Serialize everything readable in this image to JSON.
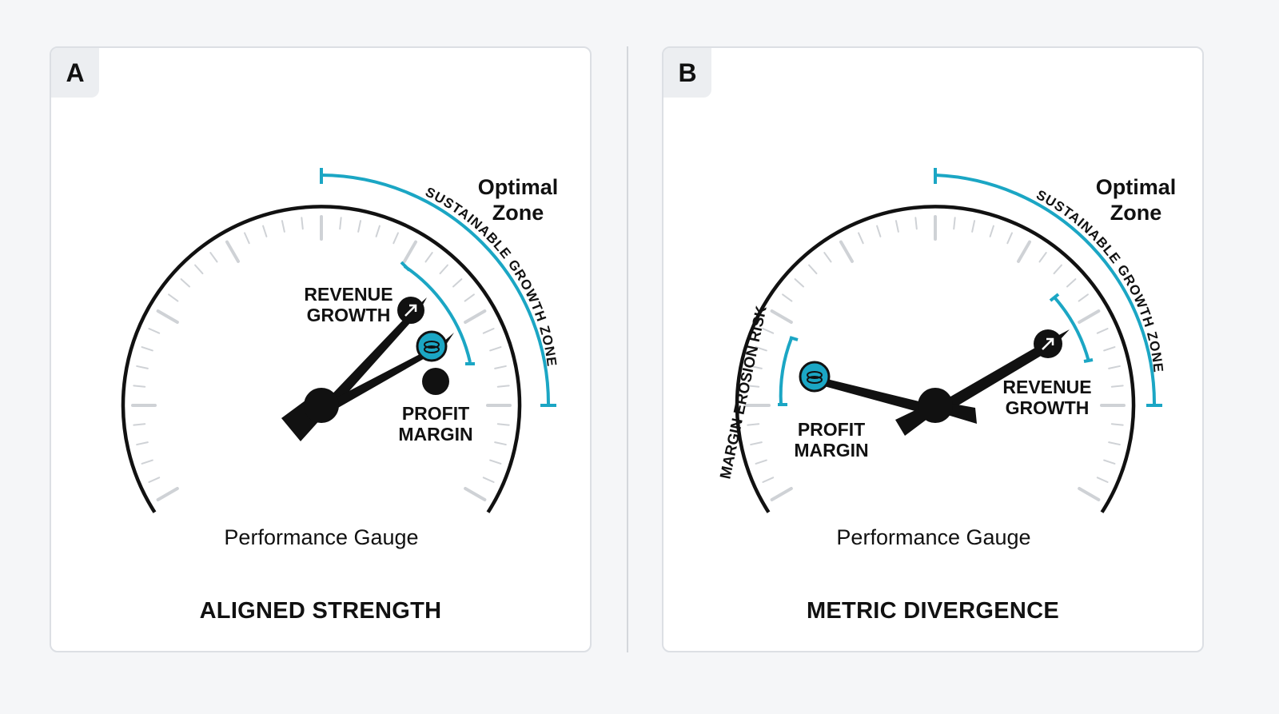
{
  "panels": [
    {
      "tag": "A",
      "optimal_zone": [
        "Optimal",
        "Zone"
      ],
      "growth_zone_label": "SUSTAINABLE GROWTH ZONE",
      "revenue_label": [
        "REVENUE",
        "GROWTH"
      ],
      "profit_label": [
        "PROFIT",
        "MARGIN"
      ],
      "gauge_title": "Performance Gauge",
      "caption": "ALIGNED STRENGTH"
    },
    {
      "tag": "B",
      "optimal_zone": [
        "Optimal",
        "Zone"
      ],
      "growth_zone_label": "SUSTAINABLE GROWTH ZONE",
      "risk_label": "MARGIN EROSION RISK",
      "revenue_label": [
        "REVENUE",
        "GROWTH"
      ],
      "profit_label": [
        "PROFIT",
        "MARGIN"
      ],
      "gauge_title": "Performance Gauge",
      "caption": "METRIC DIVERGENCE"
    }
  ],
  "colors": {
    "accent": "#1ba6c4",
    "needle": "#111111",
    "tick": "#cfd2d6"
  }
}
